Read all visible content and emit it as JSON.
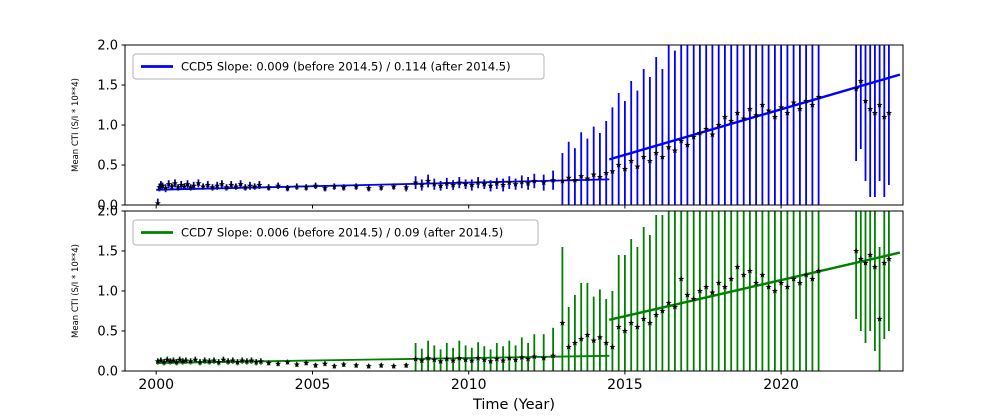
{
  "figure": {
    "background": "#ffffff",
    "xlabel": "Time (Year)"
  },
  "chart_data": [
    {
      "type": "scatter",
      "id": "ccd5",
      "legend": "CCD5 Slope: 0.009 (before 2014.5) / 0.114 (after 2014.5)",
      "color": "#0000ff",
      "marker_color": "#000000",
      "ylabel": "Mean CTI (S/I * 10**4)",
      "xlim": [
        1999.0,
        2023.9
      ],
      "ylim": [
        0.0,
        2.0
      ],
      "xticks": [
        2000,
        2005,
        2010,
        2015,
        2020
      ],
      "yticks": [
        0.0,
        0.5,
        1.0,
        1.5,
        2.0
      ],
      "ytick_labels": [
        "0.0",
        "0.5",
        "1.0",
        "1.5",
        "2.0"
      ],
      "fit": {
        "before": {
          "label": "slope 0.009 before 2014.5",
          "x": [
            2000.0,
            2014.5
          ],
          "y": [
            0.19,
            0.32
          ]
        },
        "after": {
          "label": "slope 0.114 after 2014.5",
          "x": [
            2014.5,
            2023.8
          ],
          "y": [
            0.57,
            1.63
          ]
        }
      },
      "points": [
        [
          2000.05,
          0.02,
          0.06
        ],
        [
          2000.1,
          0.22,
          0.05
        ],
        [
          2000.15,
          0.25,
          0.05
        ],
        [
          2000.2,
          0.24,
          0.04
        ],
        [
          2000.3,
          0.21,
          0.05
        ],
        [
          2000.4,
          0.26,
          0.05
        ],
        [
          2000.5,
          0.23,
          0.04
        ],
        [
          2000.6,
          0.27,
          0.05
        ],
        [
          2000.7,
          0.22,
          0.04
        ],
        [
          2000.8,
          0.25,
          0.05
        ],
        [
          2000.9,
          0.23,
          0.04
        ],
        [
          2001.0,
          0.26,
          0.05
        ],
        [
          2001.1,
          0.22,
          0.04
        ],
        [
          2001.2,
          0.24,
          0.05
        ],
        [
          2001.35,
          0.27,
          0.05
        ],
        [
          2001.5,
          0.23,
          0.04
        ],
        [
          2001.65,
          0.25,
          0.05
        ],
        [
          2001.8,
          0.22,
          0.04
        ],
        [
          2001.95,
          0.24,
          0.05
        ],
        [
          2002.1,
          0.26,
          0.05
        ],
        [
          2002.25,
          0.22,
          0.04
        ],
        [
          2002.4,
          0.25,
          0.05
        ],
        [
          2002.55,
          0.23,
          0.04
        ],
        [
          2002.7,
          0.26,
          0.05
        ],
        [
          2002.85,
          0.22,
          0.04
        ],
        [
          2003.0,
          0.24,
          0.05
        ],
        [
          2003.15,
          0.23,
          0.04
        ],
        [
          2003.3,
          0.25,
          0.05
        ],
        [
          2003.6,
          0.22,
          0.04
        ],
        [
          2003.9,
          0.24,
          0.04
        ],
        [
          2004.2,
          0.21,
          0.04
        ],
        [
          2004.5,
          0.23,
          0.04
        ],
        [
          2004.8,
          0.22,
          0.04
        ],
        [
          2005.1,
          0.24,
          0.04
        ],
        [
          2005.4,
          0.21,
          0.04
        ],
        [
          2005.7,
          0.23,
          0.04
        ],
        [
          2006.0,
          0.22,
          0.04
        ],
        [
          2006.4,
          0.23,
          0.04
        ],
        [
          2006.8,
          0.21,
          0.04
        ],
        [
          2007.2,
          0.22,
          0.04
        ],
        [
          2007.6,
          0.23,
          0.04
        ],
        [
          2008.0,
          0.22,
          0.05
        ],
        [
          2008.3,
          0.28,
          0.08
        ],
        [
          2008.5,
          0.25,
          0.07
        ],
        [
          2008.7,
          0.3,
          0.08
        ],
        [
          2008.9,
          0.26,
          0.07
        ],
        [
          2009.1,
          0.24,
          0.06
        ],
        [
          2009.3,
          0.27,
          0.07
        ],
        [
          2009.5,
          0.25,
          0.06
        ],
        [
          2009.7,
          0.28,
          0.07
        ],
        [
          2009.9,
          0.26,
          0.06
        ],
        [
          2010.1,
          0.25,
          0.07
        ],
        [
          2010.3,
          0.28,
          0.07
        ],
        [
          2010.5,
          0.26,
          0.06
        ],
        [
          2010.7,
          0.24,
          0.07
        ],
        [
          2010.9,
          0.27,
          0.07
        ],
        [
          2011.1,
          0.25,
          0.08
        ],
        [
          2011.3,
          0.28,
          0.08
        ],
        [
          2011.5,
          0.26,
          0.07
        ],
        [
          2011.7,
          0.29,
          0.08
        ],
        [
          2011.9,
          0.27,
          0.08
        ],
        [
          2012.1,
          0.3,
          0.09
        ],
        [
          2012.4,
          0.28,
          0.1
        ],
        [
          2012.7,
          0.31,
          0.12
        ],
        [
          2013.0,
          0.3,
          0.35
        ],
        [
          2013.2,
          0.34,
          0.45
        ],
        [
          2013.4,
          0.31,
          0.4
        ],
        [
          2013.6,
          0.36,
          0.55
        ],
        [
          2013.8,
          0.33,
          0.5
        ],
        [
          2014.0,
          0.38,
          0.6
        ],
        [
          2014.2,
          0.35,
          0.55
        ],
        [
          2014.4,
          0.4,
          0.65
        ],
        [
          2014.6,
          0.42,
          0.8
        ],
        [
          2014.8,
          0.5,
          0.9
        ],
        [
          2015.0,
          0.45,
          0.85
        ],
        [
          2015.2,
          0.55,
          1.0
        ],
        [
          2015.4,
          0.48,
          0.95
        ],
        [
          2015.6,
          0.6,
          1.1
        ],
        [
          2015.8,
          0.55,
          1.05
        ],
        [
          2016.0,
          0.65,
          1.2
        ],
        [
          2016.2,
          0.6,
          1.1
        ],
        [
          2016.4,
          0.72,
          1.3
        ],
        [
          2016.6,
          0.68,
          1.25
        ],
        [
          2016.8,
          0.8,
          1.4
        ],
        [
          2017.0,
          0.75,
          1.3
        ],
        [
          2017.2,
          0.85,
          1.45
        ],
        [
          2017.4,
          0.9,
          1.35
        ],
        [
          2017.6,
          0.95,
          1.5
        ],
        [
          2017.8,
          0.88,
          1.4
        ],
        [
          2018.0,
          1.0,
          1.55
        ],
        [
          2018.2,
          1.1,
          1.45
        ],
        [
          2018.4,
          1.05,
          1.5
        ],
        [
          2018.6,
          1.15,
          1.6
        ],
        [
          2018.8,
          1.08,
          1.5
        ],
        [
          2019.0,
          1.2,
          1.55
        ],
        [
          2019.2,
          1.12,
          1.45
        ],
        [
          2019.4,
          1.25,
          1.6
        ],
        [
          2019.6,
          1.18,
          1.5
        ],
        [
          2019.8,
          1.1,
          1.55
        ],
        [
          2020.0,
          1.22,
          1.6
        ],
        [
          2020.2,
          1.15,
          1.5
        ],
        [
          2020.4,
          1.28,
          1.55
        ],
        [
          2020.6,
          1.2,
          1.6
        ],
        [
          2020.8,
          1.3,
          1.5
        ],
        [
          2021.0,
          1.25,
          1.55
        ],
        [
          2021.2,
          1.35,
          1.6
        ],
        [
          2022.4,
          1.45,
          0.9
        ],
        [
          2022.55,
          1.55,
          0.85
        ],
        [
          2022.7,
          1.3,
          1.0
        ],
        [
          2022.85,
          1.2,
          1.1
        ],
        [
          2023.0,
          1.15,
          1.05
        ],
        [
          2023.15,
          1.25,
          0.95
        ],
        [
          2023.3,
          1.1,
          1.0
        ],
        [
          2023.45,
          1.15,
          0.9
        ]
      ]
    },
    {
      "type": "scatter",
      "id": "ccd7",
      "legend": "CCD7 Slope: 0.006 (before 2014.5) / 0.09 (after 2014.5)",
      "color": "#008000",
      "marker_color": "#000000",
      "ylabel": "Mean CTI (S/I * 10**4)",
      "xlim": [
        1999.0,
        2023.9
      ],
      "ylim": [
        0.0,
        2.0
      ],
      "xticks": [
        2000,
        2005,
        2010,
        2015,
        2020
      ],
      "yticks": [
        0.0,
        0.5,
        1.0,
        1.5,
        2.0
      ],
      "ytick_labels": [
        "0.0",
        "0.5",
        "1.0",
        "1.5",
        "2.0"
      ],
      "fit": {
        "before": {
          "label": "slope 0.006 before 2014.5",
          "x": [
            2000.0,
            2014.5
          ],
          "y": [
            0.1,
            0.19
          ]
        },
        "after": {
          "label": "slope 0.09 after 2014.5",
          "x": [
            2014.5,
            2023.8
          ],
          "y": [
            0.64,
            1.48
          ]
        }
      },
      "points": [
        [
          2000.05,
          0.12,
          0.04
        ],
        [
          2000.15,
          0.13,
          0.04
        ],
        [
          2000.25,
          0.11,
          0.04
        ],
        [
          2000.35,
          0.14,
          0.04
        ],
        [
          2000.45,
          0.12,
          0.04
        ],
        [
          2000.55,
          0.13,
          0.04
        ],
        [
          2000.65,
          0.11,
          0.04
        ],
        [
          2000.75,
          0.14,
          0.04
        ],
        [
          2000.85,
          0.12,
          0.04
        ],
        [
          2000.95,
          0.13,
          0.04
        ],
        [
          2001.1,
          0.12,
          0.04
        ],
        [
          2001.25,
          0.14,
          0.04
        ],
        [
          2001.4,
          0.11,
          0.04
        ],
        [
          2001.55,
          0.13,
          0.04
        ],
        [
          2001.7,
          0.12,
          0.04
        ],
        [
          2001.85,
          0.13,
          0.04
        ],
        [
          2002.0,
          0.11,
          0.04
        ],
        [
          2002.15,
          0.14,
          0.04
        ],
        [
          2002.3,
          0.12,
          0.04
        ],
        [
          2002.45,
          0.13,
          0.04
        ],
        [
          2002.6,
          0.11,
          0.04
        ],
        [
          2002.75,
          0.13,
          0.04
        ],
        [
          2002.9,
          0.12,
          0.04
        ],
        [
          2003.05,
          0.13,
          0.04
        ],
        [
          2003.2,
          0.11,
          0.04
        ],
        [
          2003.35,
          0.12,
          0.04
        ],
        [
          2003.6,
          0.1,
          0.03
        ],
        [
          2003.9,
          0.09,
          0.03
        ],
        [
          2004.2,
          0.11,
          0.03
        ],
        [
          2004.5,
          0.08,
          0.03
        ],
        [
          2004.8,
          0.1,
          0.03
        ],
        [
          2005.1,
          0.07,
          0.03
        ],
        [
          2005.4,
          0.09,
          0.03
        ],
        [
          2005.7,
          0.06,
          0.03
        ],
        [
          2006.0,
          0.08,
          0.03
        ],
        [
          2006.4,
          0.07,
          0.03
        ],
        [
          2006.8,
          0.06,
          0.03
        ],
        [
          2007.2,
          0.07,
          0.03
        ],
        [
          2007.6,
          0.06,
          0.03
        ],
        [
          2008.0,
          0.07,
          0.03
        ],
        [
          2008.3,
          0.15,
          0.2
        ],
        [
          2008.5,
          0.13,
          0.15
        ],
        [
          2008.7,
          0.16,
          0.22
        ],
        [
          2008.9,
          0.14,
          0.18
        ],
        [
          2009.1,
          0.12,
          0.15
        ],
        [
          2009.3,
          0.15,
          0.2
        ],
        [
          2009.5,
          0.13,
          0.16
        ],
        [
          2009.7,
          0.16,
          0.22
        ],
        [
          2009.9,
          0.14,
          0.18
        ],
        [
          2010.1,
          0.13,
          0.16
        ],
        [
          2010.3,
          0.16,
          0.2
        ],
        [
          2010.5,
          0.14,
          0.17
        ],
        [
          2010.7,
          0.12,
          0.15
        ],
        [
          2010.9,
          0.15,
          0.2
        ],
        [
          2011.1,
          0.13,
          0.18
        ],
        [
          2011.3,
          0.16,
          0.22
        ],
        [
          2011.5,
          0.14,
          0.18
        ],
        [
          2011.7,
          0.17,
          0.25
        ],
        [
          2011.9,
          0.15,
          0.2
        ],
        [
          2012.1,
          0.18,
          0.28
        ],
        [
          2012.4,
          0.16,
          0.3
        ],
        [
          2012.7,
          0.19,
          0.35
        ],
        [
          2013.0,
          0.6,
          0.95
        ],
        [
          2013.2,
          0.3,
          0.5
        ],
        [
          2013.4,
          0.35,
          0.6
        ],
        [
          2013.6,
          0.4,
          0.7
        ],
        [
          2013.8,
          0.45,
          0.65
        ],
        [
          2014.0,
          0.38,
          0.55
        ],
        [
          2014.2,
          0.42,
          0.6
        ],
        [
          2014.4,
          0.35,
          0.55
        ],
        [
          2014.6,
          0.3,
          0.7
        ],
        [
          2014.8,
          0.55,
          0.9
        ],
        [
          2015.0,
          0.5,
          0.95
        ],
        [
          2015.2,
          0.6,
          1.05
        ],
        [
          2015.4,
          0.55,
          1.0
        ],
        [
          2015.6,
          0.65,
          1.15
        ],
        [
          2015.8,
          0.6,
          1.1
        ],
        [
          2016.0,
          0.7,
          1.25
        ],
        [
          2016.2,
          0.75,
          1.2
        ],
        [
          2016.4,
          0.85,
          1.35
        ],
        [
          2016.6,
          0.8,
          1.3
        ],
        [
          2016.8,
          1.15,
          1.45
        ],
        [
          2017.0,
          0.95,
          1.35
        ],
        [
          2017.2,
          0.9,
          1.4
        ],
        [
          2017.4,
          1.0,
          1.45
        ],
        [
          2017.6,
          1.05,
          1.5
        ],
        [
          2017.8,
          0.98,
          1.4
        ],
        [
          2018.0,
          1.1,
          1.55
        ],
        [
          2018.2,
          1.05,
          1.45
        ],
        [
          2018.4,
          1.15,
          1.5
        ],
        [
          2018.6,
          1.3,
          1.6
        ],
        [
          2018.8,
          1.2,
          1.5
        ],
        [
          2019.0,
          1.25,
          1.55
        ],
        [
          2019.2,
          1.1,
          1.45
        ],
        [
          2019.4,
          1.2,
          1.6
        ],
        [
          2019.6,
          1.05,
          1.5
        ],
        [
          2019.8,
          1.0,
          1.55
        ],
        [
          2020.0,
          1.1,
          1.6
        ],
        [
          2020.2,
          1.05,
          1.5
        ],
        [
          2020.4,
          1.15,
          1.55
        ],
        [
          2020.6,
          1.1,
          1.6
        ],
        [
          2020.8,
          1.2,
          1.5
        ],
        [
          2021.0,
          1.15,
          1.55
        ],
        [
          2021.2,
          1.25,
          1.6
        ],
        [
          2022.4,
          1.5,
          0.85
        ],
        [
          2022.55,
          1.4,
          0.9
        ],
        [
          2022.7,
          1.35,
          1.0
        ],
        [
          2022.85,
          1.45,
          0.95
        ],
        [
          2023.0,
          1.3,
          1.05
        ],
        [
          2023.15,
          0.65,
          0.9
        ],
        [
          2023.3,
          1.35,
          0.95
        ],
        [
          2023.45,
          1.4,
          0.9
        ]
      ]
    }
  ]
}
